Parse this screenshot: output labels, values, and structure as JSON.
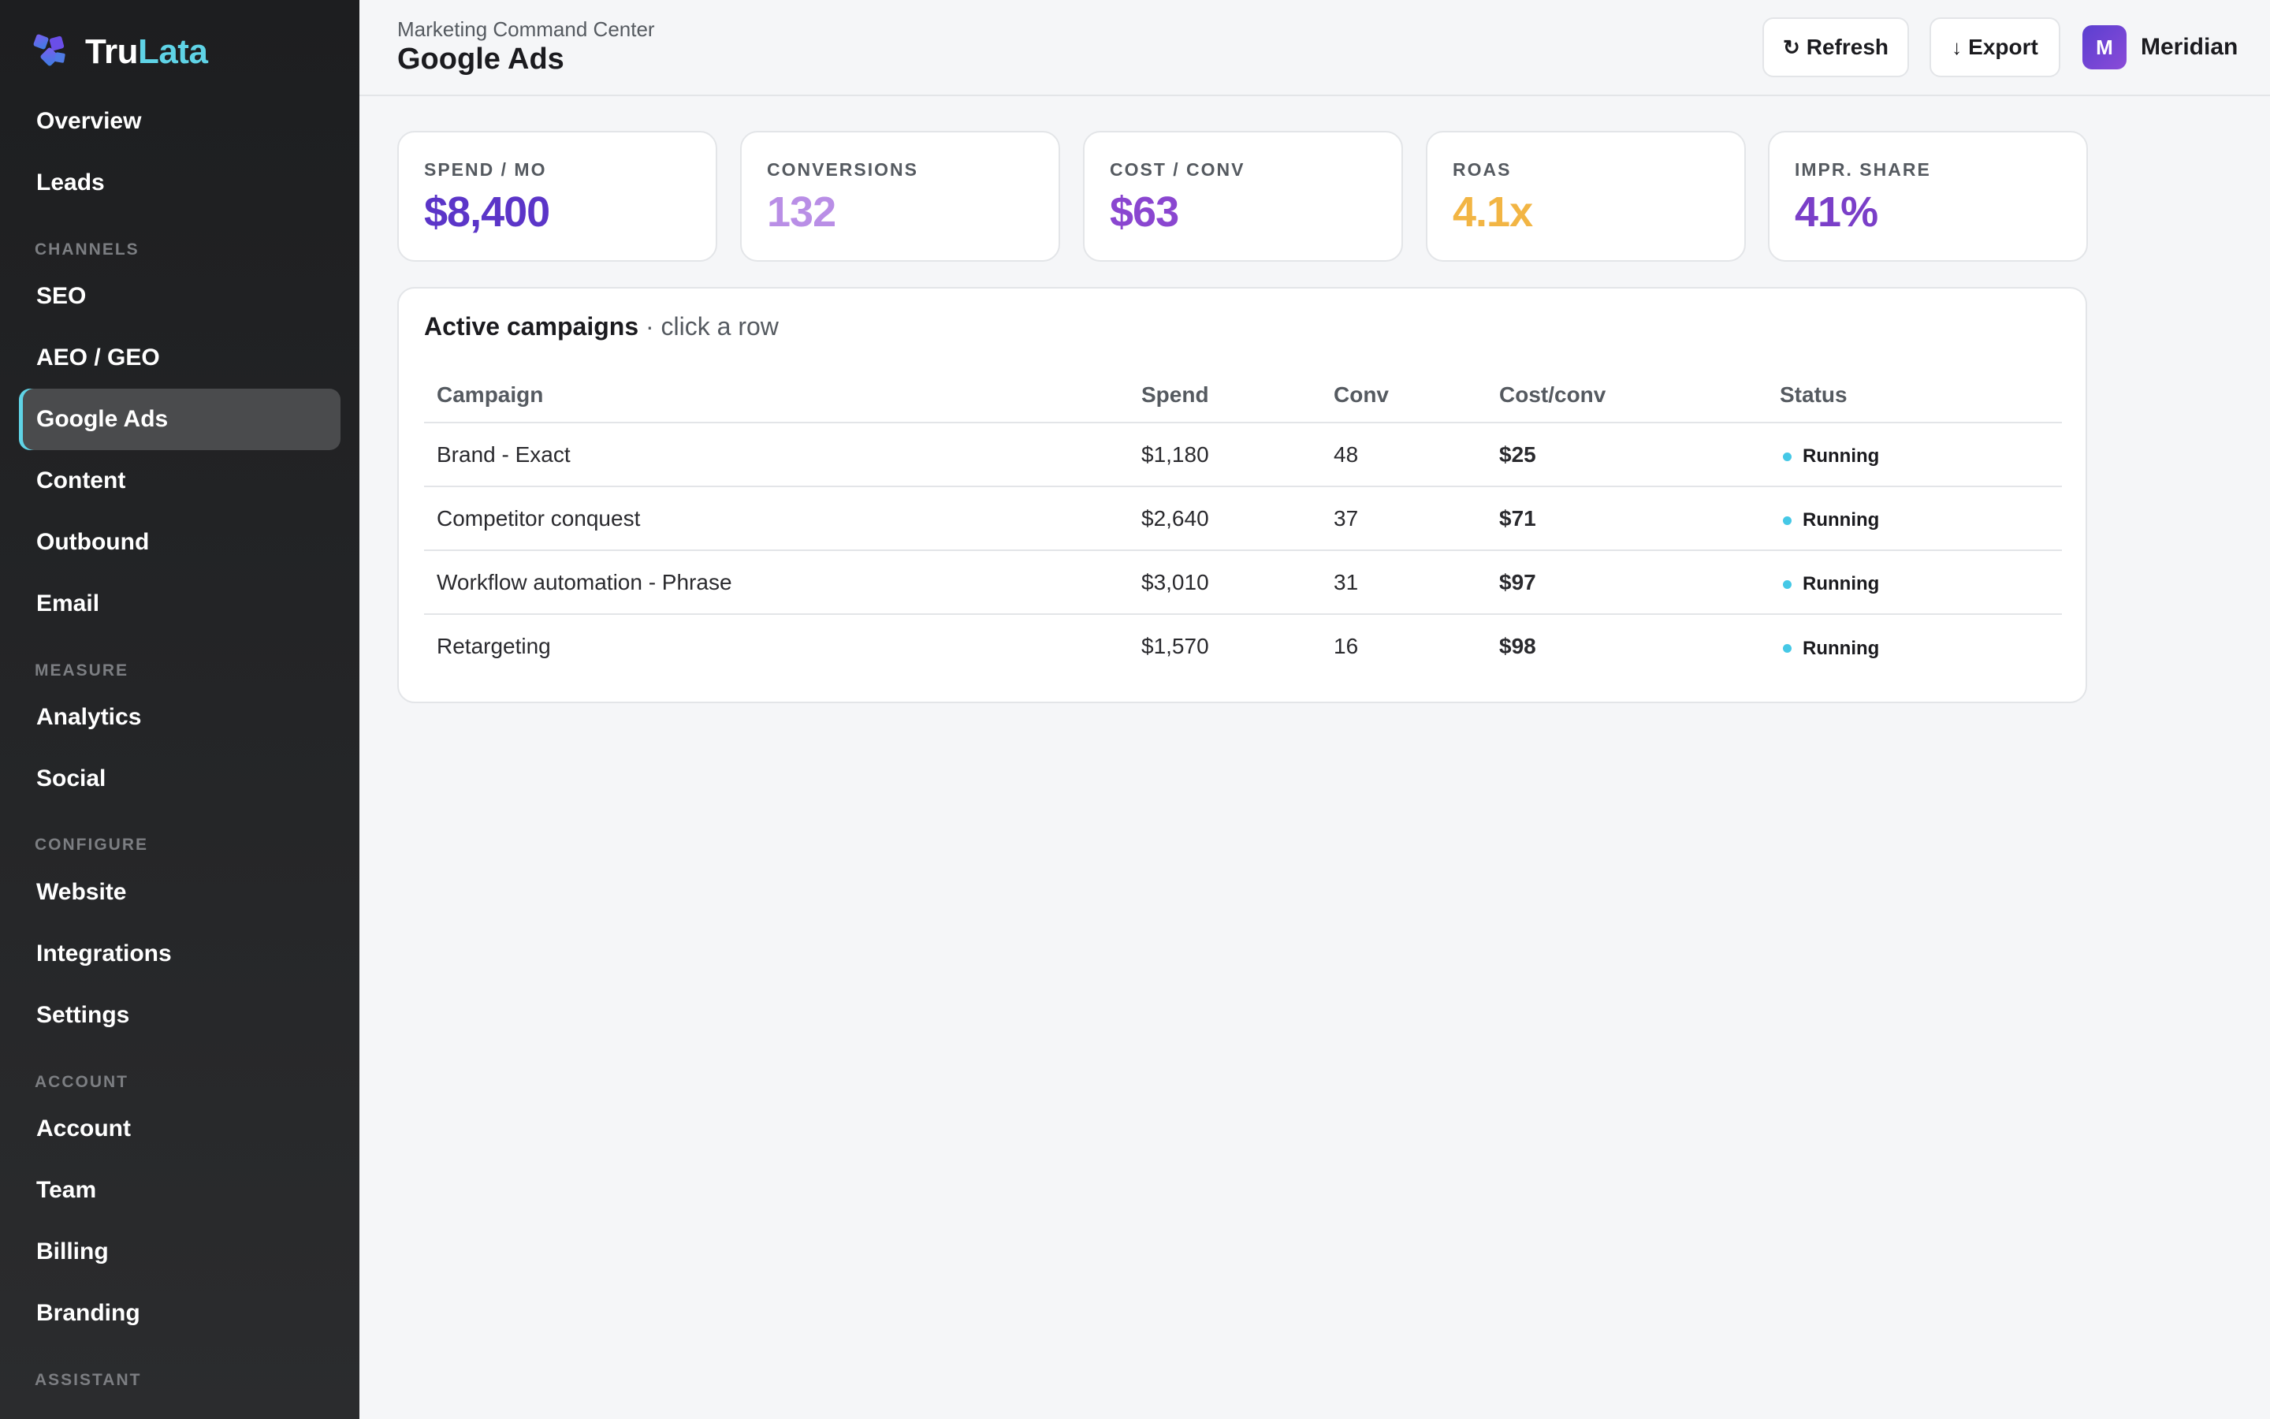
{
  "brand": {
    "name_main": "Tru",
    "name_accent": "Lata"
  },
  "sidebar": {
    "items": [
      {
        "label": "Overview"
      },
      {
        "label": "Leads"
      },
      {
        "section": "CHANNELS"
      },
      {
        "label": "SEO"
      },
      {
        "label": "AEO / GEO"
      },
      {
        "label": "Google Ads",
        "active": true
      },
      {
        "label": "Content"
      },
      {
        "label": "Outbound"
      },
      {
        "label": "Email"
      },
      {
        "section": "MEASURE"
      },
      {
        "label": "Analytics"
      },
      {
        "label": "Social"
      },
      {
        "section": "CONFIGURE"
      },
      {
        "label": "Website"
      },
      {
        "label": "Integrations"
      },
      {
        "label": "Settings"
      },
      {
        "section": "ACCOUNT"
      },
      {
        "label": "Account"
      },
      {
        "label": "Team"
      },
      {
        "label": "Billing"
      },
      {
        "label": "Branding"
      },
      {
        "section": "ASSISTANT"
      }
    ]
  },
  "header": {
    "subtitle": "Marketing Command Center",
    "title": "Google Ads",
    "refresh_label": "Refresh",
    "export_label": "Export",
    "user": {
      "initial": "M",
      "name": "Meridian"
    }
  },
  "kpis": [
    {
      "label": "SPEND / MO",
      "value": "$8,400"
    },
    {
      "label": "CONVERSIONS",
      "value": "132"
    },
    {
      "label": "COST / CONV",
      "value": "$63"
    },
    {
      "label": "ROAS",
      "value": "4.1x"
    },
    {
      "label": "IMPR. SHARE",
      "value": "41%"
    }
  ],
  "campaigns": {
    "title": "Active campaigns",
    "hint": "· click a row",
    "columns": [
      "Campaign",
      "Spend",
      "Conv",
      "Cost/conv",
      "Status"
    ],
    "rows": [
      {
        "campaign": "Brand - Exact",
        "spend": "$1,180",
        "conv": "48",
        "cost": "$25",
        "status": "Running"
      },
      {
        "campaign": "Competitor conquest",
        "spend": "$2,640",
        "conv": "37",
        "cost": "$71",
        "status": "Running"
      },
      {
        "campaign": "Workflow automation - Phrase",
        "spend": "$3,010",
        "conv": "31",
        "cost": "$97",
        "status": "Running"
      },
      {
        "campaign": "Retargeting",
        "spend": "$1,570",
        "conv": "16",
        "cost": "$98",
        "status": "Running"
      }
    ]
  },
  "colors": {
    "accent": "#5fd3e6",
    "kpi_spend": "#5b35c8",
    "kpi_conversions": "#b98ee6",
    "kpi_cost": "#8a46d0",
    "kpi_roas": "#f2b544",
    "kpi_impr": "#7a3fc8",
    "status_running": "#45c8e6"
  }
}
